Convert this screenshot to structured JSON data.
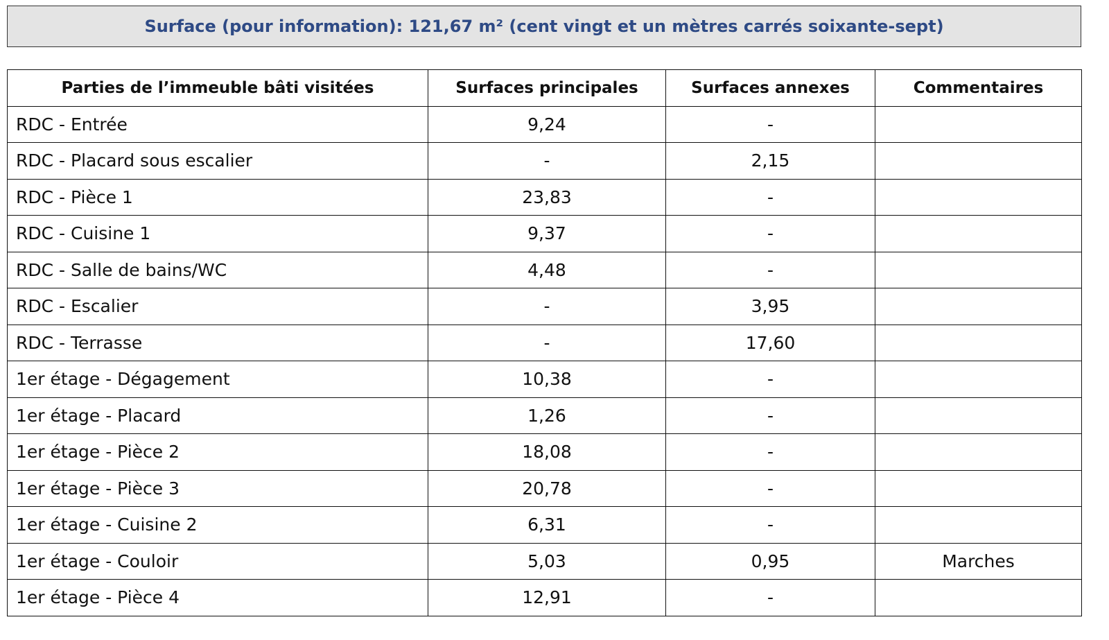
{
  "banner": {
    "title": "Surface (pour information): 121,67 m² (cent vingt et un mètres carrés soixante-sept)"
  },
  "table": {
    "headers": [
      "Parties de l’immeuble bâti visitées",
      "Surfaces principales",
      "Surfaces annexes",
      "Commentaires"
    ],
    "rows": [
      [
        "RDC - Entrée",
        "9,24",
        "-",
        null
      ],
      [
        "RDC - Placard sous escalier",
        "-",
        "2,15",
        null
      ],
      [
        "RDC - Pièce 1",
        "23,83",
        "-",
        null
      ],
      [
        "RDC - Cuisine 1",
        "9,37",
        "-",
        null
      ],
      [
        "RDC - Salle de bains/WC",
        "4,48",
        "-",
        null
      ],
      [
        "RDC - Escalier",
        "-",
        "3,95",
        null
      ],
      [
        "RDC - Terrasse",
        "-",
        "17,60",
        null
      ],
      [
        "1er étage - Dégagement",
        "10,38",
        "-",
        null
      ],
      [
        "1er étage - Placard",
        "1,26",
        "-",
        null
      ],
      [
        "1er étage - Pièce 2",
        "18,08",
        "-",
        null
      ],
      [
        "1er étage - Pièce 3",
        "20,78",
        "-",
        null
      ],
      [
        "1er étage - Cuisine 2",
        "6,31",
        "-",
        null
      ],
      [
        "1er étage - Couloir",
        "5,03",
        "0,95",
        "Marches"
      ],
      [
        "1er étage - Pièce 4",
        "12,91",
        "-",
        null
      ]
    ]
  }
}
